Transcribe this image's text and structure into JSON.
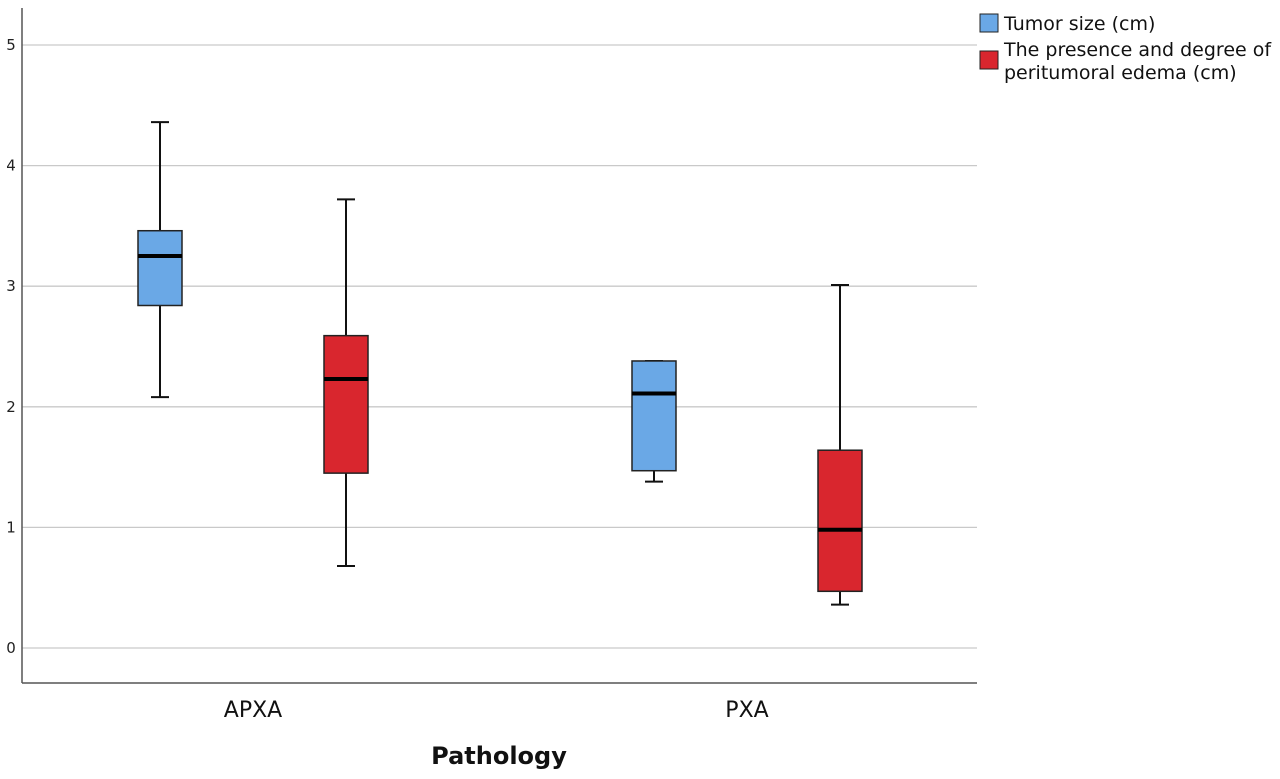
{
  "chart_data": {
    "type": "boxplot",
    "xlabel": "Pathology",
    "ylabel": "",
    "ylim": [
      -0.3,
      5.3
    ],
    "yticks": [
      "0",
      "1",
      "2",
      "3",
      "4",
      "5"
    ],
    "grid": true,
    "legend_position": "top-right",
    "categories": [
      "APXA",
      "PXA"
    ],
    "series": [
      {
        "name": "Tumor size (cm)",
        "color": "#6aa8e6",
        "boxes": [
          {
            "min": 2.08,
            "q1": 2.84,
            "median": 3.25,
            "q3": 3.46,
            "max": 4.36
          },
          {
            "min": 1.38,
            "q1": 1.47,
            "median": 2.11,
            "q3": 2.38,
            "max": 2.38
          }
        ]
      },
      {
        "name": "The presence and degree of peritumoral edema (cm)",
        "color": "#d9262e",
        "boxes": [
          {
            "min": 0.68,
            "q1": 1.45,
            "median": 2.23,
            "q3": 2.59,
            "max": 3.72
          },
          {
            "min": 0.36,
            "q1": 0.47,
            "median": 0.98,
            "q3": 1.64,
            "max": 3.01
          }
        ]
      }
    ]
  },
  "legend": {
    "items": [
      {
        "line1": "Tumor size  (cm)",
        "line2": ""
      },
      {
        "line1": "The presence and degree of",
        "line2": "peritumoral edema  (cm)"
      }
    ]
  }
}
